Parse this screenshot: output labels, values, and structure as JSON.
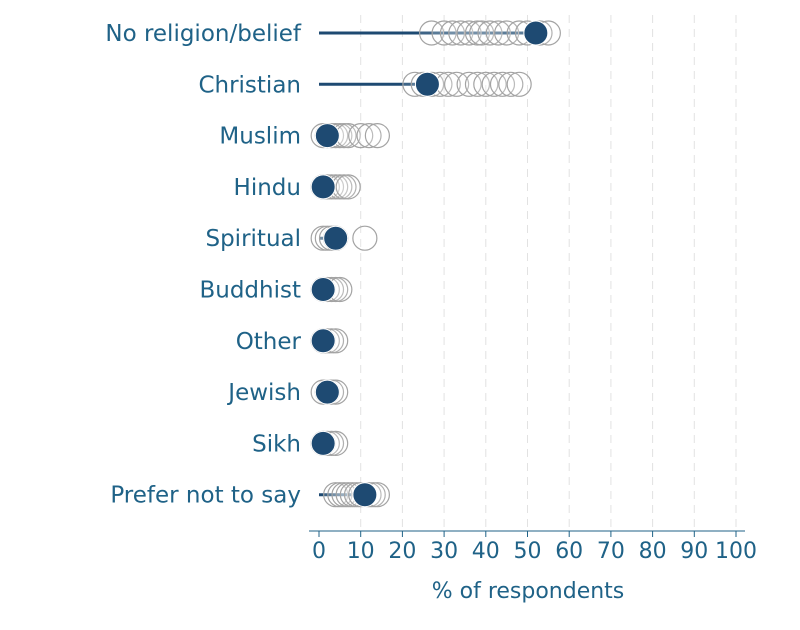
{
  "chart_data": {
    "type": "scatter",
    "xlabel": "% of respondents",
    "xlim": [
      0,
      100
    ],
    "xticks": [
      0,
      10,
      20,
      30,
      40,
      50,
      60,
      70,
      80,
      90,
      100
    ],
    "categories": [
      "No religion/belief",
      "Christian",
      "Muslim",
      "Hindu",
      "Spiritual",
      "Buddhist",
      "Other",
      "Jewish",
      "Sikh",
      "Prefer not to say"
    ],
    "highlighted_values": [
      52,
      26,
      2,
      1,
      4,
      1,
      1,
      2,
      1,
      11
    ],
    "comparison_values": [
      [
        27,
        30,
        32,
        34,
        36,
        38,
        39,
        41,
        43,
        45,
        48,
        50,
        53,
        55
      ],
      [
        23,
        25,
        27,
        29,
        31,
        33,
        36,
        38,
        40,
        42,
        44,
        46,
        48
      ],
      [
        1,
        2,
        3,
        4,
        5,
        6,
        7,
        10,
        12,
        14
      ],
      [
        1,
        2,
        3,
        4,
        5,
        6,
        7
      ],
      [
        1,
        2,
        3,
        4,
        11
      ],
      [
        1,
        2,
        3,
        4,
        5
      ],
      [
        1,
        2,
        3,
        4
      ],
      [
        1,
        2,
        3,
        4
      ],
      [
        1,
        2,
        3,
        4
      ],
      [
        4,
        5,
        6,
        7,
        8,
        9,
        10,
        12,
        13,
        14
      ]
    ],
    "colors": {
      "highlight": "#1e4a72",
      "comparison_stroke": "#a3a3a3",
      "text": "#1f6287",
      "grid": "#e2e2e2"
    },
    "grid": true
  }
}
